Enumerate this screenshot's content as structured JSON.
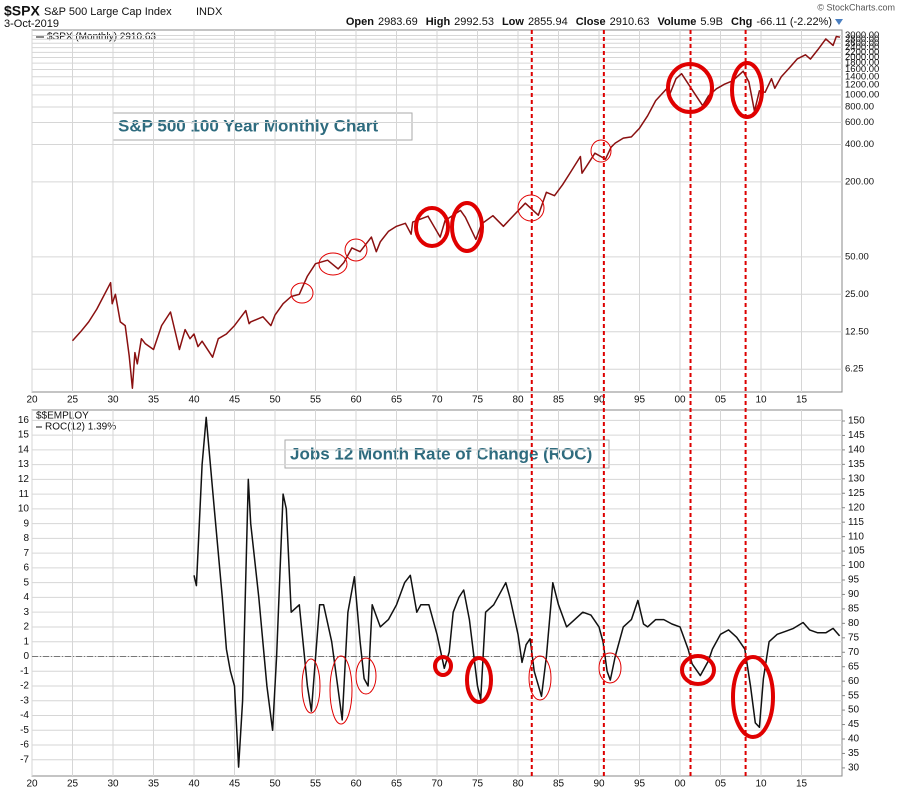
{
  "header": {
    "symbol": "$SPX",
    "name": "S&P 500 Large Cap Index",
    "exchange": "INDX",
    "date": "3-Oct-2019",
    "credit": "© StockCharts.com",
    "quote": [
      {
        "label": "Open",
        "value": 2983.69
      },
      {
        "label": "High",
        "value": 2992.53
      },
      {
        "label": "Low",
        "value": 2855.94
      },
      {
        "label": "Close",
        "value": 2910.63
      },
      {
        "label": "Volume",
        "value": "5.9B"
      },
      {
        "label": "Chg",
        "value": "-66.11 (-2.22%)"
      }
    ]
  },
  "chart_data": [
    {
      "type": "line",
      "annotation": "S&P 500 100 Year Monthly Chart",
      "log_scale": true,
      "grid": true,
      "xlim": [
        1920,
        2020
      ],
      "ylim": [
        4.1,
        3325
      ],
      "xticks": [
        {
          "value": 1920,
          "label": "20"
        },
        {
          "value": 1925,
          "label": "25"
        },
        {
          "value": 1930,
          "label": "30"
        },
        {
          "value": 1935,
          "label": "35"
        },
        {
          "value": 1940,
          "label": "40"
        },
        {
          "value": 1945,
          "label": "45"
        },
        {
          "value": 1950,
          "label": "50"
        },
        {
          "value": 1955,
          "label": "55"
        },
        {
          "value": 1960,
          "label": "60"
        },
        {
          "value": 1965,
          "label": "65"
        },
        {
          "value": 1970,
          "label": "70"
        },
        {
          "value": 1975,
          "label": "75"
        },
        {
          "value": 1980,
          "label": "80"
        },
        {
          "value": 1985,
          "label": "85"
        },
        {
          "value": 1990,
          "label": "90"
        },
        {
          "value": 1995,
          "label": "95"
        },
        {
          "value": 2000,
          "label": "00"
        },
        {
          "value": 2005,
          "label": "05"
        },
        {
          "value": 2010,
          "label": "10"
        },
        {
          "value": 2015,
          "label": "15"
        }
      ],
      "yticks": [
        6.25,
        {
          "value": 12.5,
          "label": "12.50"
        },
        {
          "value": 25,
          "label": "25.00"
        },
        {
          "value": 50,
          "label": "50.00"
        },
        {
          "value": 200,
          "label": "200.00"
        },
        {
          "value": 400,
          "label": "400.00"
        },
        {
          "value": 600,
          "label": "600.00"
        },
        {
          "value": 800,
          "label": "800.00"
        },
        {
          "value": 1000,
          "label": "1000.00"
        },
        {
          "value": 1200,
          "label": "1200.00"
        },
        {
          "value": 1400,
          "label": "1400.00"
        },
        {
          "value": 1600,
          "label": "1600.00"
        },
        {
          "value": 1800,
          "label": "1800.00"
        },
        {
          "value": 2000,
          "label": "2000.00"
        },
        {
          "value": 2200,
          "label": "2200.00"
        },
        {
          "value": 2400,
          "label": "2400.00"
        },
        {
          "value": 2600,
          "label": "2600.00"
        },
        {
          "value": 2800,
          "label": "2800.00"
        },
        {
          "value": 3000,
          "label": "3000.00"
        }
      ],
      "vlines": [
        1981.7,
        1990.6,
        2001.3,
        2008.1
      ],
      "vline_color": "#dd0000",
      "x": [
        1925,
        1926,
        1927,
        1928,
        1929.7,
        1929.9,
        1930.3,
        1930.9,
        1931.5,
        1932.0,
        1932.4,
        1932.7,
        1933.0,
        1933.5,
        1934,
        1935,
        1936,
        1937.1,
        1938.2,
        1938.9,
        1939.5,
        1940,
        1940.5,
        1941,
        1942.3,
        1943,
        1944,
        1945,
        1946.4,
        1946.8,
        1947,
        1948.5,
        1949.5,
        1950,
        1951,
        1952,
        1953,
        1954,
        1955,
        1956.5,
        1957.8,
        1958.5,
        1959.5,
        1960.5,
        1961.9,
        1962.5,
        1963,
        1964,
        1965,
        1966.1,
        1966.8,
        1967,
        1968.9,
        1969,
        1970.4,
        1971,
        1972.9,
        1973.5,
        1974.8,
        1975.5,
        1976.9,
        1978.2,
        1979,
        1980.9,
        1982.5,
        1983.5,
        1984.5,
        1985.5,
        1986.5,
        1987.7,
        1987.9,
        1988.5,
        1989.5,
        1990.8,
        1991.5,
        1992,
        1993,
        1994,
        1995,
        1996,
        1997,
        1998.5,
        1998.7,
        1999.5,
        2000.2,
        2001.7,
        2002.8,
        2003.5,
        2004.5,
        2005.5,
        2006.5,
        2007.8,
        2008.5,
        2009.2,
        2009.8,
        2010.5,
        2011.3,
        2011.7,
        2012.5,
        2013.5,
        2014.5,
        2015.5,
        2016.1,
        2017,
        2018,
        2018.9,
        2019.3,
        2019.75
      ],
      "series": [
        {
          "name": "$SPX (Monthly) 2910.63",
          "color": "#8a1010",
          "values": [
            10.6,
            12.5,
            15,
            19,
            31,
            21,
            25,
            15,
            14,
            8,
            4.4,
            8.5,
            6.9,
            11,
            10,
            9,
            14,
            18,
            9,
            13,
            11,
            12,
            9.5,
            10.5,
            7.8,
            11,
            12,
            14,
            18.5,
            14.5,
            15,
            16.5,
            14,
            17,
            21,
            24,
            25,
            35,
            44,
            47,
            40,
            45,
            59,
            55,
            72,
            55,
            66,
            80,
            88,
            93,
            76,
            95,
            106,
            103,
            72,
            98,
            118,
            104,
            69,
            92,
            107,
            88,
            100,
            135,
            108,
            165,
            155,
            190,
            240,
            320,
            235,
            270,
            340,
            305,
            380,
            410,
            450,
            460,
            540,
            680,
            900,
            1150,
            1000,
            1350,
            1480,
            1050,
            820,
            980,
            1120,
            1220,
            1300,
            1550,
            1270,
            740,
            1080,
            1050,
            1350,
            1130,
            1400,
            1650,
            1950,
            2100,
            1940,
            2300,
            2820,
            2500,
            2950,
            2910.63
          ]
        }
      ]
    },
    {
      "type": "line",
      "title": "$$EMPLOY",
      "annotation": "Jobs 12 Month Rate of Change (ROC)",
      "grid": true,
      "hline": 0,
      "xlim": [
        1920,
        2020
      ],
      "ylim": [
        -8.1,
        16.7
      ],
      "y2lim": [
        27.2,
        153.8
      ],
      "xticks": [
        {
          "value": 1920,
          "label": "20"
        },
        {
          "value": 1925,
          "label": "25"
        },
        {
          "value": 1930,
          "label": "30"
        },
        {
          "value": 1935,
          "label": "35"
        },
        {
          "value": 1940,
          "label": "40"
        },
        {
          "value": 1945,
          "label": "45"
        },
        {
          "value": 1950,
          "label": "50"
        },
        {
          "value": 1955,
          "label": "55"
        },
        {
          "value": 1960,
          "label": "60"
        },
        {
          "value": 1965,
          "label": "65"
        },
        {
          "value": 1970,
          "label": "70"
        },
        {
          "value": 1975,
          "label": "75"
        },
        {
          "value": 1980,
          "label": "80"
        },
        {
          "value": 1985,
          "label": "85"
        },
        {
          "value": 1990,
          "label": "90"
        },
        {
          "value": 1995,
          "label": "95"
        },
        {
          "value": 2000,
          "label": "00"
        },
        {
          "value": 2005,
          "label": "05"
        },
        {
          "value": 2010,
          "label": "10"
        },
        {
          "value": 2015,
          "label": "15"
        }
      ],
      "yticks": [
        -7,
        -6,
        -5,
        -4,
        -3,
        -2,
        -1,
        0,
        1,
        2,
        3,
        4,
        5,
        6,
        7,
        8,
        9,
        10,
        11,
        12,
        13,
        14,
        15,
        16
      ],
      "y2ticks": [
        30,
        35,
        40,
        45,
        50,
        55,
        60,
        65,
        70,
        75,
        80,
        85,
        90,
        95,
        100,
        105,
        110,
        115,
        120,
        125,
        130,
        135,
        140,
        145,
        150
      ],
      "x": [
        1940,
        1940.3,
        1941,
        1941.5,
        1942.5,
        1943,
        1943.5,
        1944,
        1944.5,
        1945,
        1945.5,
        1946,
        1946.7,
        1947,
        1948,
        1949,
        1949.7,
        1950.2,
        1951,
        1951.4,
        1952,
        1953,
        1954,
        1954.5,
        1955.5,
        1956,
        1957,
        1958.3,
        1959,
        1959.8,
        1960.5,
        1961,
        1961.5,
        1962,
        1963,
        1964,
        1965,
        1966,
        1966.7,
        1967.5,
        1968,
        1969,
        1970,
        1970.9,
        1971.5,
        1972,
        1972.7,
        1973.3,
        1974,
        1975,
        1975.4,
        1976,
        1977,
        1978.5,
        1979,
        1980,
        1980.5,
        1981,
        1981.5,
        1982,
        1982.9,
        1983.5,
        1984.3,
        1985,
        1986,
        1987,
        1988,
        1989,
        1990,
        1990.5,
        1991,
        1991.4,
        1992,
        1993,
        1994,
        1994.8,
        1995.5,
        1996,
        1997,
        1998,
        1999,
        2000,
        2001,
        2001.5,
        2002.5,
        2003.5,
        2004,
        2005,
        2006,
        2007,
        2008,
        2008.7,
        2009.3,
        2009.8,
        2010.3,
        2011,
        2012,
        2013,
        2014,
        2015.2,
        2016,
        2017,
        2018,
        2018.9,
        2019.7
      ],
      "series": [
        {
          "name": "ROC(12) 1.39%",
          "color": "#111111",
          "values": [
            5.5,
            4.8,
            13,
            16.2,
            10,
            7,
            4,
            0.5,
            -1,
            -2,
            -7.5,
            -3,
            12,
            9,
            4,
            -2,
            -5,
            0,
            11,
            10,
            3,
            3.5,
            -2,
            -3.7,
            3.5,
            3.5,
            1,
            -4.3,
            3,
            5.4,
            1,
            -1.5,
            -2,
            3.5,
            2,
            2.5,
            3.5,
            5,
            5.5,
            3,
            3.5,
            3.5,
            1.5,
            -0.8,
            0.3,
            3,
            4,
            4.5,
            2.5,
            -2,
            -2.9,
            3,
            3.5,
            5,
            4,
            1.5,
            -0.4,
            0.8,
            1.2,
            -1,
            -2.7,
            0,
            5,
            3.5,
            2,
            2.5,
            3,
            2.8,
            2,
            1,
            -1,
            -1.6,
            0,
            2,
            2.5,
            3.8,
            2.2,
            2,
            2.5,
            2.5,
            2.2,
            2,
            0.5,
            -0.5,
            -1.3,
            -0.3,
            0.5,
            1.5,
            1.8,
            1.3,
            0.5,
            -2,
            -4.5,
            -4.8,
            -1.5,
            1,
            1.5,
            1.7,
            1.9,
            2.3,
            1.8,
            1.6,
            1.6,
            1.9,
            1.39
          ]
        }
      ]
    }
  ]
}
